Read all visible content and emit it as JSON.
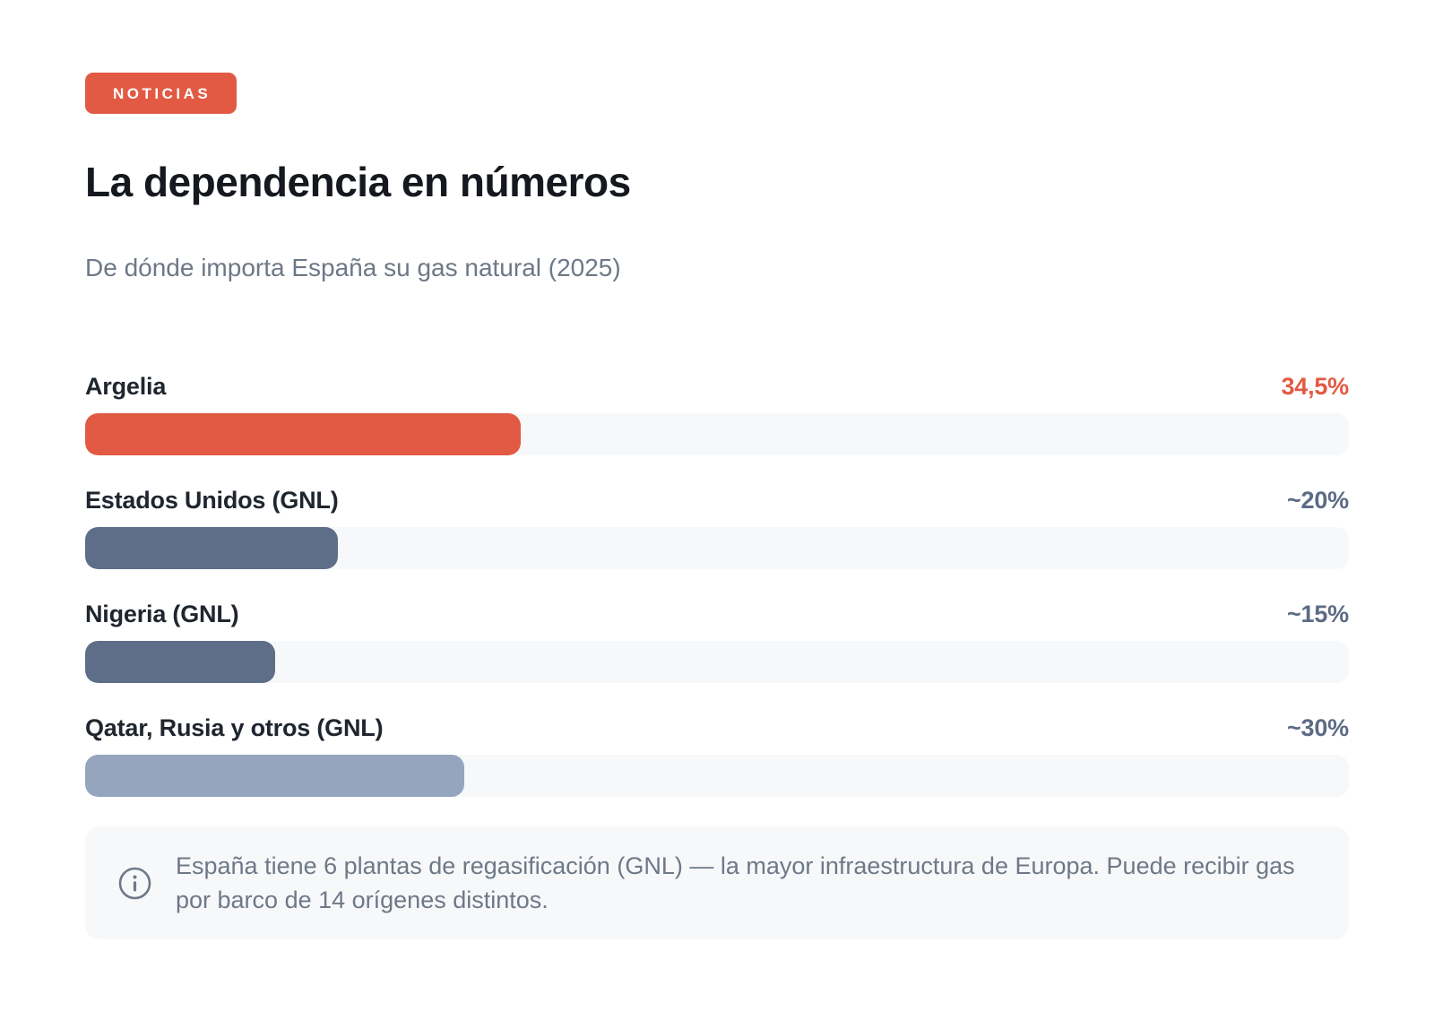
{
  "badge": {
    "label": "NOTICIAS"
  },
  "header": {
    "title": "La dependencia en números",
    "subtitle": "De dónde importa España su gas natural (2025)"
  },
  "chart_data": {
    "type": "bar",
    "orientation": "horizontal",
    "title": "La dependencia en números",
    "subtitle": "De dónde importa España su gas natural (2025)",
    "categories": [
      "Argelia",
      "Estados Unidos (GNL)",
      "Nigeria (GNL)",
      "Qatar, Rusia y otros (GNL)"
    ],
    "values": [
      34.5,
      20,
      15,
      30
    ],
    "value_labels": [
      "34,5%",
      "~20%",
      "~15%",
      "~30%"
    ],
    "xlim": [
      0,
      100
    ],
    "grid": false,
    "legend": false,
    "bar_colors": [
      "#E25A43",
      "#5F6E88",
      "#5F6E88",
      "#95A5BE"
    ],
    "value_colors": [
      "#E25A43",
      "#5C6B85",
      "#5C6B85",
      "#5C6B85"
    ],
    "track_color": "#F7F8FA"
  },
  "note": {
    "icon": "info-icon",
    "text": "España tiene 6 plantas de regasificación (GNL) — la mayor infraestructura de Europa. Puede recibir gas por barco de 14 orígenes distintos."
  },
  "colors": {
    "accent": "#E25A43",
    "slate_dark": "#5F6E88",
    "slate_light": "#95A5BE",
    "track": "#F7F8FA",
    "title_text": "#15191F",
    "label_text": "#20262F",
    "muted_text": "#6E7887",
    "background": "#FFFFFF"
  }
}
